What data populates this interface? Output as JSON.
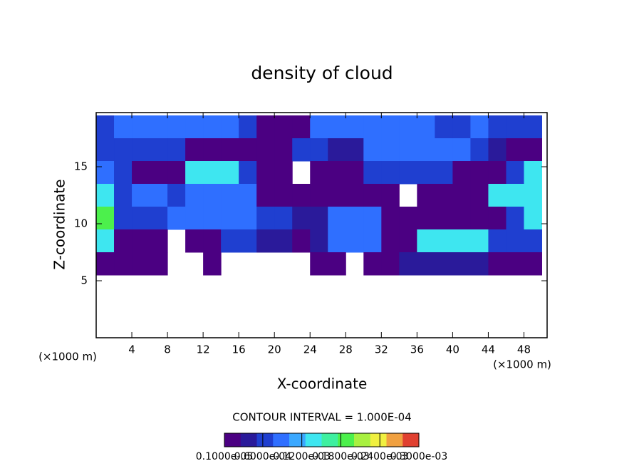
{
  "chart_data": {
    "type": "contour",
    "title": "density of cloud",
    "x_label": "X-coordinate",
    "y_label": "Z-coordinate",
    "x_unit": "(×1000 m)",
    "y_unit": "(×1000 m)",
    "annotation": "CONTOUR INTERVAL = 1.000E-04",
    "xlim": [
      0,
      50.6
    ],
    "ylim": [
      0,
      19.75
    ],
    "xticks": [
      4,
      8,
      12,
      16,
      20,
      24,
      28,
      32,
      36,
      40,
      44,
      48
    ],
    "yticks": [
      5,
      10,
      15
    ],
    "x": [
      1,
      3,
      5,
      7,
      9,
      11,
      13,
      15,
      17,
      19,
      21,
      23,
      25,
      27,
      29,
      31,
      33,
      35,
      37,
      39,
      41,
      43,
      45,
      47,
      49
    ],
    "z": [
      18.5,
      16.5,
      14.5,
      12.5,
      10.5,
      8.5,
      6.5
    ],
    "values": [
      [
        7e-05,
        0.0001,
        0.0001,
        0.0001,
        0.0001,
        0.0001,
        0.0001,
        0.0001,
        7e-05,
        1e-05,
        1e-05,
        1e-05,
        0.0001,
        0.0001,
        0.0001,
        0.0001,
        0.0001,
        0.0001,
        0.0001,
        7e-05,
        7e-05,
        0.0001,
        7e-05,
        7e-05,
        7e-05
      ],
      [
        7e-05,
        7e-05,
        7e-05,
        7e-05,
        7e-05,
        1e-05,
        1e-05,
        1e-05,
        1e-05,
        1e-05,
        1e-05,
        7e-05,
        7e-05,
        4e-05,
        4e-05,
        0.0001,
        0.0001,
        0.0001,
        0.0001,
        0.0001,
        0.0001,
        7e-05,
        4e-05,
        1e-05,
        1e-05
      ],
      [
        0.0001,
        7e-05,
        1e-05,
        1e-05,
        1e-05,
        0.00014,
        0.00014,
        0.00014,
        7e-05,
        1e-05,
        1e-05,
        null,
        1e-05,
        1e-05,
        1e-05,
        7e-05,
        7e-05,
        7e-05,
        7e-05,
        7e-05,
        1e-05,
        1e-05,
        1e-05,
        7e-05,
        0.00014
      ],
      [
        0.00014,
        7e-05,
        0.0001,
        0.0001,
        7e-05,
        0.0001,
        0.0001,
        0.0001,
        0.0001,
        1e-05,
        1e-05,
        1e-05,
        1e-05,
        1e-05,
        1e-05,
        1e-05,
        1e-05,
        null,
        1e-05,
        1e-05,
        1e-05,
        1e-05,
        0.00014,
        0.00014,
        0.00014
      ],
      [
        0.00018,
        7e-05,
        7e-05,
        7e-05,
        0.0001,
        0.0001,
        0.0001,
        0.0001,
        0.0001,
        7e-05,
        7e-05,
        4e-05,
        4e-05,
        0.0001,
        0.0001,
        0.0001,
        1e-05,
        1e-05,
        1e-05,
        1e-05,
        1e-05,
        1e-05,
        1e-05,
        7e-05,
        0.00014
      ],
      [
        0.00014,
        1e-05,
        1e-05,
        1e-05,
        null,
        1e-05,
        1e-05,
        7e-05,
        7e-05,
        4e-05,
        4e-05,
        1e-05,
        4e-05,
        0.0001,
        0.0001,
        0.0001,
        1e-05,
        1e-05,
        0.00014,
        0.00014,
        0.00014,
        0.00014,
        7e-05,
        7e-05,
        7e-05
      ],
      [
        1e-05,
        1e-05,
        1e-05,
        1e-05,
        null,
        null,
        1e-05,
        null,
        null,
        null,
        null,
        null,
        1e-05,
        1e-05,
        null,
        1e-05,
        1e-05,
        4e-05,
        4e-05,
        4e-05,
        4e-05,
        4e-05,
        1e-05,
        1e-05,
        1e-05
      ]
    ],
    "colormap": [
      "#4b0082",
      "#2a1a9a",
      "#1f3fd0",
      "#2f6fff",
      "#3aa8ff",
      "#3ee6f0",
      "#3ef0a0",
      "#4cf04c",
      "#a8f040",
      "#f0f040",
      "#f0a040",
      "#e04030"
    ],
    "colorbar_ticks": [
      {
        "value": 1e-06,
        "label": "0.1000e-05"
      },
      {
        "value": 6e-05,
        "label": "0.6000e-04"
      },
      {
        "value": 0.00012,
        "label": "0.1200e-03"
      },
      {
        "value": 0.00018,
        "label": "0.1800e-03"
      },
      {
        "value": 0.00024,
        "label": "0.2400e-03"
      },
      {
        "value": 0.0003,
        "label": "0.3000e-03"
      }
    ]
  }
}
